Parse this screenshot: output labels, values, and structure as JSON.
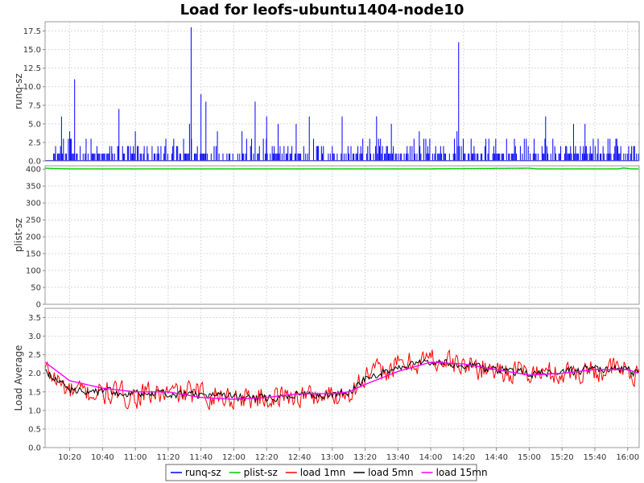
{
  "chart_data": {
    "type": "line",
    "title": "Load for leofs-ubuntu1404-node10",
    "x_axis": {
      "range": [
        "10:05",
        "16:07"
      ],
      "tick_labels": [
        "10:20",
        "10:40",
        "11:00",
        "11:20",
        "11:40",
        "12:00",
        "12:20",
        "12:40",
        "13:00",
        "13:20",
        "13:40",
        "14:00",
        "14:20",
        "14:40",
        "15:00",
        "15:20",
        "15:40",
        "16:00"
      ]
    },
    "grid": true,
    "legend_placement": "bottom-center",
    "panels": [
      {
        "id": "runq",
        "ylabel": "runq-sz",
        "ylim": [
          0,
          18.75
        ],
        "yticks": [
          0.0,
          2.5,
          5.0,
          7.5,
          10.0,
          12.5,
          15.0,
          17.5
        ],
        "ytick_labels": [
          "0.0",
          "2.5",
          "5.0",
          "7.5",
          "10.0",
          "12.5",
          "15.0",
          "17.5"
        ],
        "series": [
          {
            "name": "runq-sz",
            "color": "#0000ff",
            "style": "impulse",
            "base_level": 1,
            "spikes": [
              {
                "time": "10:15",
                "value": 6
              },
              {
                "time": "10:23",
                "value": 11
              },
              {
                "time": "10:20",
                "value": 4
              },
              {
                "time": "10:50",
                "value": 7
              },
              {
                "time": "11:00",
                "value": 4
              },
              {
                "time": "11:34",
                "value": 18
              },
              {
                "time": "11:33",
                "value": 5
              },
              {
                "time": "11:40",
                "value": 9
              },
              {
                "time": "11:43",
                "value": 8
              },
              {
                "time": "11:50",
                "value": 4
              },
              {
                "time": "12:05",
                "value": 4
              },
              {
                "time": "12:13",
                "value": 8
              },
              {
                "time": "12:20",
                "value": 6
              },
              {
                "time": "12:27",
                "value": 5
              },
              {
                "time": "12:38",
                "value": 5
              },
              {
                "time": "12:46",
                "value": 6
              },
              {
                "time": "13:06",
                "value": 6
              },
              {
                "time": "13:27",
                "value": 6
              },
              {
                "time": "13:36",
                "value": 5
              },
              {
                "time": "13:53",
                "value": 4
              },
              {
                "time": "14:17",
                "value": 16
              },
              {
                "time": "14:16",
                "value": 4
              },
              {
                "time": "15:10",
                "value": 6
              },
              {
                "time": "15:27",
                "value": 5
              },
              {
                "time": "15:34",
                "value": 5
              }
            ]
          }
        ]
      },
      {
        "id": "plist",
        "ylabel": "plist-sz",
        "ylim": [
          0,
          410
        ],
        "yticks": [
          0,
          50,
          100,
          150,
          200,
          250,
          300,
          350,
          400
        ],
        "ytick_labels": [
          "0",
          "50",
          "100",
          "150",
          "200",
          "250",
          "300",
          "350",
          "400"
        ],
        "series": [
          {
            "name": "plist-sz",
            "color": "#00cc00",
            "points": [
              {
                "time": "10:05",
                "value": 403
              },
              {
                "time": "10:10",
                "value": 402
              },
              {
                "time": "10:20",
                "value": 401
              },
              {
                "time": "12:00",
                "value": 401
              },
              {
                "time": "14:00",
                "value": 401
              },
              {
                "time": "15:00",
                "value": 403
              },
              {
                "time": "15:05",
                "value": 401
              },
              {
                "time": "15:55",
                "value": 401
              },
              {
                "time": "15:57",
                "value": 404
              },
              {
                "time": "16:02",
                "value": 401
              },
              {
                "time": "16:07",
                "value": 401
              }
            ]
          }
        ]
      },
      {
        "id": "load",
        "ylabel": "Load Average",
        "ylim": [
          0,
          3.75
        ],
        "yticks": [
          0.0,
          0.5,
          1.0,
          1.5,
          2.0,
          2.5,
          3.0,
          3.5
        ],
        "ytick_labels": [
          "0.0",
          "0.5",
          "1.0",
          "1.5",
          "2.0",
          "2.5",
          "3.0",
          "3.5"
        ],
        "series": [
          {
            "name": "load 1mn",
            "color": "#ff0000",
            "noisy": true,
            "amplitude": 0.45,
            "points": [
              {
                "time": "10:05",
                "value": 2.1
              },
              {
                "time": "10:20",
                "value": 1.5
              },
              {
                "time": "10:40",
                "value": 1.45
              },
              {
                "time": "11:00",
                "value": 1.4
              },
              {
                "time": "11:20",
                "value": 1.45
              },
              {
                "time": "11:40",
                "value": 1.45
              },
              {
                "time": "12:00",
                "value": 1.35
              },
              {
                "time": "12:20",
                "value": 1.35
              },
              {
                "time": "12:40",
                "value": 1.4
              },
              {
                "time": "13:00",
                "value": 1.4
              },
              {
                "time": "13:10",
                "value": 1.5
              },
              {
                "time": "13:20",
                "value": 1.9
              },
              {
                "time": "13:40",
                "value": 2.2
              },
              {
                "time": "14:00",
                "value": 2.4
              },
              {
                "time": "14:20",
                "value": 2.2
              },
              {
                "time": "14:40",
                "value": 2.1
              },
              {
                "time": "15:00",
                "value": 2.0
              },
              {
                "time": "15:20",
                "value": 2.0
              },
              {
                "time": "15:40",
                "value": 2.1
              },
              {
                "time": "16:00",
                "value": 2.1
              },
              {
                "time": "16:07",
                "value": 1.8
              }
            ]
          },
          {
            "name": "load 5mn",
            "color": "#000000",
            "noisy": true,
            "amplitude": 0.15,
            "points": [
              {
                "time": "10:05",
                "value": 2.1
              },
              {
                "time": "10:20",
                "value": 1.55
              },
              {
                "time": "10:40",
                "value": 1.5
              },
              {
                "time": "11:00",
                "value": 1.45
              },
              {
                "time": "11:20",
                "value": 1.45
              },
              {
                "time": "11:40",
                "value": 1.4
              },
              {
                "time": "12:00",
                "value": 1.35
              },
              {
                "time": "12:20",
                "value": 1.35
              },
              {
                "time": "12:40",
                "value": 1.4
              },
              {
                "time": "13:00",
                "value": 1.45
              },
              {
                "time": "13:10",
                "value": 1.5
              },
              {
                "time": "13:20",
                "value": 1.85
              },
              {
                "time": "13:40",
                "value": 2.2
              },
              {
                "time": "14:00",
                "value": 2.35
              },
              {
                "time": "14:20",
                "value": 2.2
              },
              {
                "time": "14:40",
                "value": 2.1
              },
              {
                "time": "15:00",
                "value": 2.0
              },
              {
                "time": "15:20",
                "value": 2.05
              },
              {
                "time": "15:40",
                "value": 2.1
              },
              {
                "time": "16:00",
                "value": 2.1
              },
              {
                "time": "16:07",
                "value": 1.95
              }
            ]
          },
          {
            "name": "load 15mn",
            "color": "#ff00ff",
            "noisy": false,
            "points": [
              {
                "time": "10:05",
                "value": 2.3
              },
              {
                "time": "10:20",
                "value": 1.8
              },
              {
                "time": "10:40",
                "value": 1.6
              },
              {
                "time": "11:00",
                "value": 1.5
              },
              {
                "time": "11:20",
                "value": 1.5
              },
              {
                "time": "11:40",
                "value": 1.35
              },
              {
                "time": "12:00",
                "value": 1.3
              },
              {
                "time": "12:20",
                "value": 1.35
              },
              {
                "time": "12:40",
                "value": 1.45
              },
              {
                "time": "13:00",
                "value": 1.45
              },
              {
                "time": "13:10",
                "value": 1.5
              },
              {
                "time": "13:20",
                "value": 1.7
              },
              {
                "time": "13:40",
                "value": 2.05
              },
              {
                "time": "14:00",
                "value": 2.3
              },
              {
                "time": "14:20",
                "value": 2.25
              },
              {
                "time": "14:40",
                "value": 2.1
              },
              {
                "time": "15:00",
                "value": 1.95
              },
              {
                "time": "15:20",
                "value": 2.0
              },
              {
                "time": "15:40",
                "value": 2.1
              },
              {
                "time": "16:00",
                "value": 2.1
              },
              {
                "time": "16:07",
                "value": 2.0
              }
            ]
          }
        ]
      }
    ],
    "legend": [
      {
        "name": "runq-sz",
        "color": "#0000ff"
      },
      {
        "name": "plist-sz",
        "color": "#00cc00"
      },
      {
        "name": "load 1mn",
        "color": "#ff0000"
      },
      {
        "name": "load 5mn",
        "color": "#000000"
      },
      {
        "name": "load 15mn",
        "color": "#ff00ff"
      }
    ]
  }
}
